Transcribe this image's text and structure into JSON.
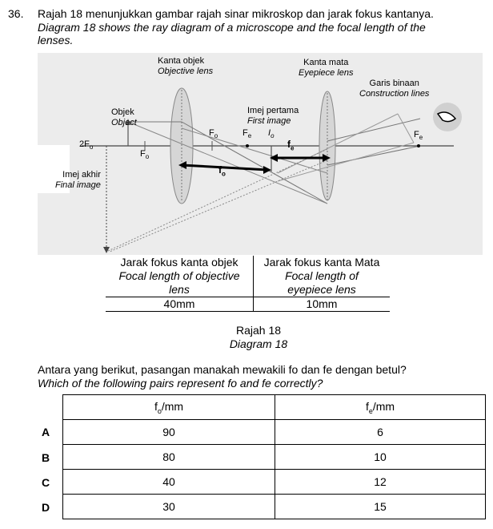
{
  "question": {
    "number": "36.",
    "line_ms": "Rajah 18 menunjukkan gambar rajah sinar mikroskop dan jarak fokus kantanya.",
    "line_en_1": "Diagram 18 shows the ray diagram of a microscope and the focal length of the",
    "line_en_2": "lenses."
  },
  "diagram": {
    "objective_ms": "Kanta objek",
    "objective_en": "Objective lens",
    "eyepiece_ms": "Kanta mata",
    "eyepiece_en": "Eyepiece lens",
    "construction_ms": "Garis binaan",
    "construction_en": "Construction lines",
    "object_ms": "Objek",
    "object_en": "Object",
    "first_image_ms": "Imej pertama",
    "first_image_en": "First image",
    "final_image_ms": "Imej akhir",
    "final_image_en": "Final image",
    "two_fo": "2F",
    "fo_sub": "o",
    "fe_sub": "e",
    "io_letter": "I",
    "F": "F",
    "f": "f"
  },
  "focal_table": {
    "col1_ms": "Jarak fokus kanta objek",
    "col1_en_1": "Focal length of objective",
    "col1_en_2": "lens",
    "col2_ms": "Jarak fokus kanta Mata",
    "col2_en_1": "Focal length of",
    "col2_en_2": "eyepiece lens",
    "val1": "40mm",
    "val2": "10mm"
  },
  "caption": {
    "ms": "Rajah 18",
    "en": "Diagram 18"
  },
  "question2": {
    "ms": "Antara yang berikut, pasangan manakah mewakili fo dan fe dengan betul?",
    "en": "Which of the following pairs represent fo and fe correctly?"
  },
  "answer_table": {
    "head_f": "f",
    "head_o": "o",
    "head_e": "e",
    "head_unit": "/mm",
    "rows": [
      {
        "letter": "A",
        "fo": "90",
        "fe": "6"
      },
      {
        "letter": "B",
        "fo": "80",
        "fe": "10"
      },
      {
        "letter": "C",
        "fo": "40",
        "fe": "12"
      },
      {
        "letter": "D",
        "fo": "30",
        "fe": "15"
      }
    ]
  }
}
